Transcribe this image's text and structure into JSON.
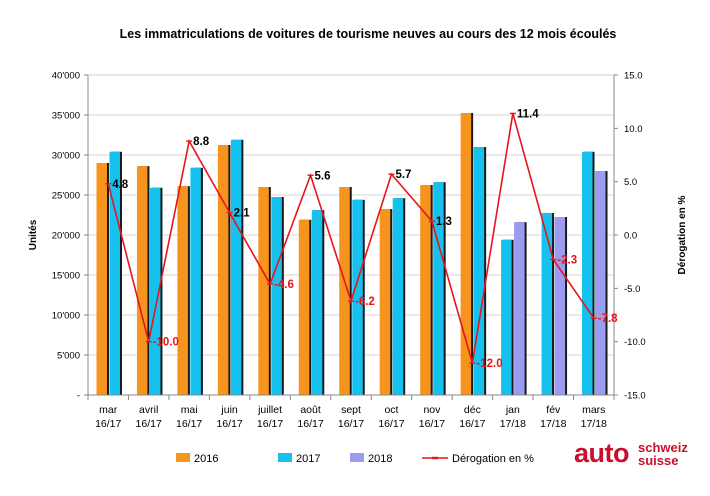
{
  "chart_data": {
    "type": "bar",
    "title": "Les immatriculations de voitures de tourisme neuves au cours des 12 mois écoulés",
    "xlabel": "",
    "ylabel": "Unités",
    "y2label": "Dérogation en %",
    "ylim": [
      0,
      40000
    ],
    "y2lim": [
      -15,
      15
    ],
    "yticks": [
      "-",
      "5'000",
      "10'000",
      "15'000",
      "20'000",
      "25'000",
      "30'000",
      "35'000",
      "40'000"
    ],
    "y2ticks": [
      "-15.0",
      "-10.0",
      "-5.0",
      "0.0",
      "5.0",
      "10.0",
      "15.0"
    ],
    "grid": true,
    "legend_position": "bottom",
    "categories": [
      [
        "mar",
        "16/17"
      ],
      [
        "avril",
        "16/17"
      ],
      [
        "mai",
        "16/17"
      ],
      [
        "juin",
        "16/17"
      ],
      [
        "juillet",
        "16/17"
      ],
      [
        "août",
        "16/17"
      ],
      [
        "sept",
        "16/17"
      ],
      [
        "oct",
        "16/17"
      ],
      [
        "nov",
        "16/17"
      ],
      [
        "déc",
        "16/17"
      ],
      [
        "jan",
        "17/18"
      ],
      [
        "fév",
        "17/18"
      ],
      [
        "mars",
        "17/18"
      ]
    ],
    "series": [
      {
        "name": "2016",
        "kind": "bar",
        "color": "#f7941d",
        "values": [
          29000,
          28600,
          26100,
          31250,
          26000,
          21900,
          26000,
          23250,
          26250,
          35250,
          null,
          null,
          null
        ]
      },
      {
        "name": "2017",
        "kind": "bar",
        "color": "#17c1ee",
        "values": [
          30400,
          25900,
          28400,
          31900,
          24750,
          23100,
          24400,
          24600,
          26600,
          31000,
          19400,
          22750,
          30400
        ]
      },
      {
        "name": "2018",
        "kind": "bar",
        "color": "#9b9cf0",
        "values": [
          null,
          null,
          null,
          null,
          null,
          null,
          null,
          null,
          null,
          null,
          21600,
          22250,
          28000
        ]
      },
      {
        "name": "Dérogation en %",
        "kind": "line",
        "axis": "right",
        "color": "#e8141c",
        "values": [
          4.8,
          -10.0,
          8.8,
          2.1,
          -4.6,
          5.6,
          -6.2,
          5.7,
          1.3,
          -12.0,
          11.4,
          -2.3,
          -7.8
        ],
        "labels": [
          "4.8",
          "-10.0",
          "8.8",
          "2.1",
          "-4.6",
          "5.6",
          "-6.2",
          "5.7",
          "1.3",
          "-12.0",
          "11.4",
          "-2.3",
          "-7.8"
        ]
      }
    ]
  },
  "logo": {
    "main": "auto",
    "line1": "schweiz",
    "line2": "suisse",
    "color": "#c8102e"
  }
}
